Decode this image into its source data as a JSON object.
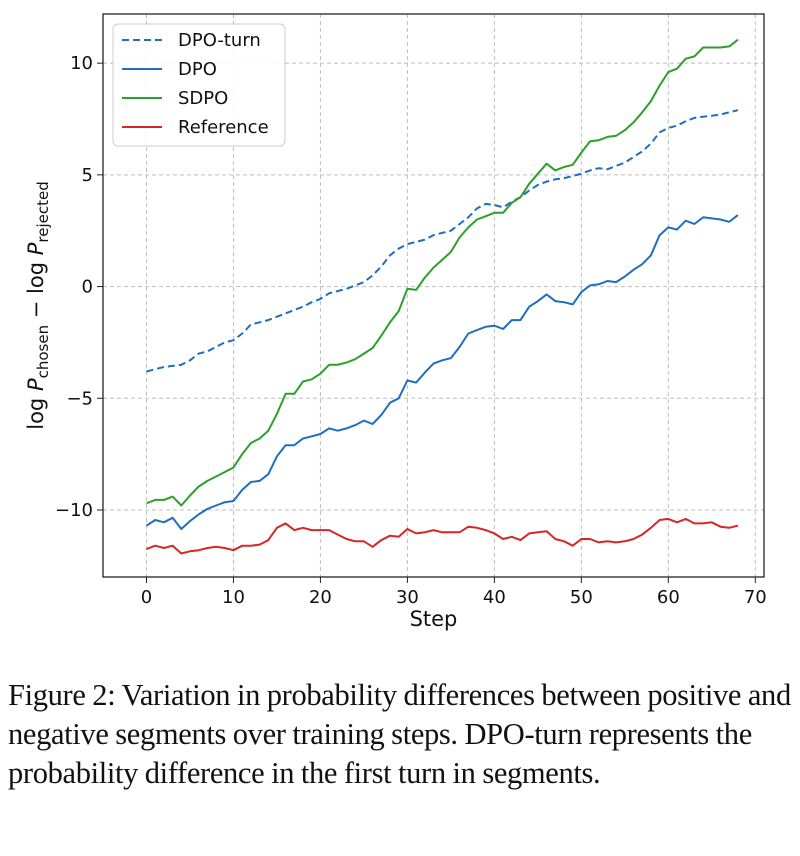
{
  "chart_data": {
    "type": "line",
    "title": "",
    "xlabel": "Step",
    "ylabel": "log P_chosen − log P_rejected",
    "ylabel_parts": {
      "log1": "log ",
      "P1": "P",
      "sub1": "chosen",
      "minus": " − log ",
      "P2": "P",
      "sub2": "rejected"
    },
    "xlim": [
      -5,
      71
    ],
    "ylim": [
      -13,
      12.2
    ],
    "xticks": [
      0,
      10,
      20,
      30,
      40,
      50,
      60,
      70
    ],
    "yticks": [
      -10,
      -5,
      0,
      5,
      10
    ],
    "xtick_labels": [
      "0",
      "10",
      "20",
      "30",
      "40",
      "50",
      "60",
      "70"
    ],
    "ytick_labels": [
      "−10",
      "−5",
      "0",
      "5",
      "10"
    ],
    "grid": true,
    "legend_position": "top-left",
    "x": [
      0,
      1,
      2,
      3,
      4,
      5,
      6,
      7,
      8,
      9,
      10,
      11,
      12,
      13,
      14,
      15,
      16,
      17,
      18,
      19,
      20,
      21,
      22,
      23,
      24,
      25,
      26,
      27,
      28,
      29,
      30,
      31,
      32,
      33,
      34,
      35,
      36,
      37,
      38,
      39,
      40,
      41,
      42,
      43,
      44,
      45,
      46,
      47,
      48,
      49,
      50,
      51,
      52,
      53,
      54,
      55,
      56,
      57,
      58,
      59,
      60,
      61,
      62,
      63,
      64,
      65,
      66,
      67,
      68
    ],
    "series": [
      {
        "name": "DPO-turn",
        "color": "#1f6fbf",
        "style": "dashed",
        "values": [
          -3.8,
          -3.7,
          -3.6,
          -3.55,
          -3.5,
          -3.3,
          -3.0,
          -2.9,
          -2.7,
          -2.5,
          -2.4,
          -2.1,
          -1.7,
          -1.6,
          -1.5,
          -1.35,
          -1.2,
          -1.05,
          -0.9,
          -0.7,
          -0.55,
          -0.3,
          -0.2,
          -0.1,
          0.05,
          0.2,
          0.5,
          0.9,
          1.4,
          1.7,
          1.9,
          2.0,
          2.1,
          2.3,
          2.4,
          2.5,
          2.8,
          3.1,
          3.5,
          3.7,
          3.65,
          3.55,
          3.8,
          4.0,
          4.3,
          4.55,
          4.7,
          4.8,
          4.85,
          4.95,
          5.05,
          5.2,
          5.3,
          5.25,
          5.4,
          5.55,
          5.8,
          6.05,
          6.4,
          6.9,
          7.1,
          7.2,
          7.4,
          7.55,
          7.6,
          7.65,
          7.7,
          7.8,
          7.9
        ]
      },
      {
        "name": "DPO",
        "color": "#1f6fbf",
        "style": "solid",
        "values": [
          -10.7,
          -10.45,
          -10.55,
          -10.35,
          -10.85,
          -10.5,
          -10.2,
          -9.95,
          -9.8,
          -9.65,
          -9.6,
          -9.1,
          -8.75,
          -8.7,
          -8.4,
          -7.6,
          -7.1,
          -7.1,
          -6.8,
          -6.7,
          -6.6,
          -6.35,
          -6.45,
          -6.35,
          -6.2,
          -6.0,
          -6.15,
          -5.75,
          -5.2,
          -5.0,
          -4.2,
          -4.3,
          -3.85,
          -3.45,
          -3.3,
          -3.2,
          -2.7,
          -2.1,
          -1.95,
          -1.8,
          -1.75,
          -1.9,
          -1.5,
          -1.5,
          -0.9,
          -0.65,
          -0.35,
          -0.65,
          -0.7,
          -0.8,
          -0.25,
          0.05,
          0.1,
          0.25,
          0.2,
          0.45,
          0.75,
          1.0,
          1.4,
          2.3,
          2.65,
          2.55,
          2.95,
          2.8,
          3.1,
          3.05,
          3.0,
          2.9,
          3.2
        ]
      },
      {
        "name": "SDPO",
        "color": "#2ca02c",
        "style": "solid",
        "values": [
          -9.7,
          -9.55,
          -9.55,
          -9.4,
          -9.8,
          -9.35,
          -8.95,
          -8.7,
          -8.5,
          -8.3,
          -8.1,
          -7.5,
          -7.0,
          -6.8,
          -6.45,
          -5.7,
          -4.8,
          -4.8,
          -4.25,
          -4.15,
          -3.9,
          -3.5,
          -3.5,
          -3.4,
          -3.25,
          -3.0,
          -2.75,
          -2.2,
          -1.6,
          -1.1,
          -0.1,
          -0.15,
          0.4,
          0.85,
          1.2,
          1.55,
          2.2,
          2.65,
          3.0,
          3.15,
          3.3,
          3.3,
          3.75,
          4.0,
          4.6,
          5.05,
          5.5,
          5.2,
          5.35,
          5.45,
          6.0,
          6.5,
          6.55,
          6.7,
          6.75,
          7.0,
          7.35,
          7.8,
          8.3,
          9.0,
          9.6,
          9.75,
          10.2,
          10.3,
          10.7,
          10.7,
          10.7,
          10.75,
          11.05
        ]
      },
      {
        "name": "Reference",
        "color": "#d62728",
        "style": "solid",
        "values": [
          -11.75,
          -11.6,
          -11.7,
          -11.6,
          -11.95,
          -11.85,
          -11.8,
          -11.7,
          -11.65,
          -11.7,
          -11.8,
          -11.6,
          -11.6,
          -11.55,
          -11.35,
          -10.8,
          -10.6,
          -10.9,
          -10.8,
          -10.9,
          -10.9,
          -10.9,
          -11.1,
          -11.3,
          -11.4,
          -11.4,
          -11.65,
          -11.35,
          -11.15,
          -11.2,
          -10.85,
          -11.05,
          -11.0,
          -10.9,
          -11.0,
          -11.0,
          -11.0,
          -10.75,
          -10.8,
          -10.9,
          -11.05,
          -11.3,
          -11.2,
          -11.35,
          -11.05,
          -11.0,
          -10.95,
          -11.3,
          -11.4,
          -11.6,
          -11.3,
          -11.3,
          -11.45,
          -11.4,
          -11.45,
          -11.4,
          -11.3,
          -11.1,
          -10.8,
          -10.45,
          -10.4,
          -10.55,
          -10.4,
          -10.6,
          -10.6,
          -10.55,
          -10.75,
          -10.8,
          -10.7
        ]
      }
    ]
  },
  "caption": {
    "text": "Figure 2: Variation in probability differences between positive and negative segments over training steps. DPO-turn represents the probability difference in the first turn in segments."
  }
}
